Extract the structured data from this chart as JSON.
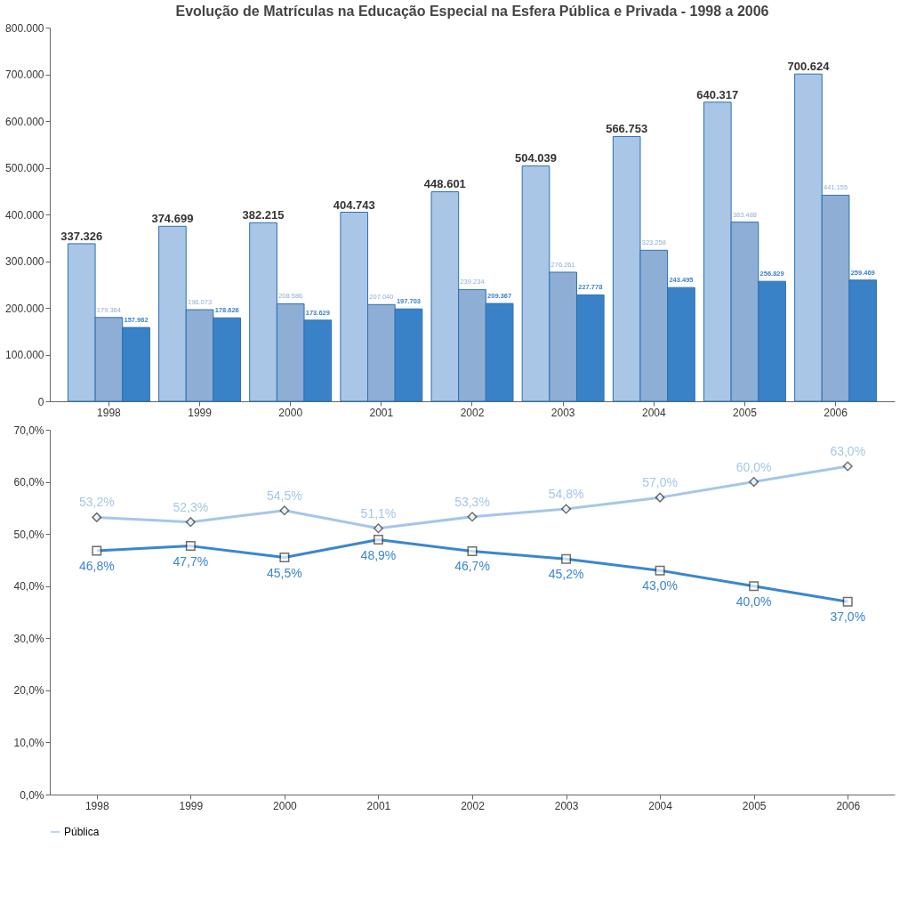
{
  "chart_data": [
    {
      "type": "bar",
      "title": "Evolução de Matrículas na Educação Especial na Esfera Pública e Privada - 1998 a 2006",
      "categories": [
        "1998",
        "1999",
        "2000",
        "2001",
        "2002",
        "2003",
        "2004",
        "2005",
        "2006"
      ],
      "series": [
        {
          "color": "#a9c6e6",
          "values": [
            337326,
            374699,
            382215,
            404743,
            448601,
            504039,
            566753,
            640317,
            700624
          ],
          "value_labels": [
            "337.326",
            "374.699",
            "382.215",
            "404.743",
            "448.601",
            "504.039",
            "566.753",
            "640.317",
            "700.624"
          ]
        },
        {
          "color": "#8eaed6",
          "values": [
            179364,
            196073,
            208586,
            207040,
            239234,
            276261,
            323258,
            383488,
            441155
          ],
          "value_labels": [
            "179.364",
            "196.073",
            "208.586",
            "207.040",
            "239.234",
            "276.261",
            "323.258",
            "383.488",
            "441.155"
          ]
        },
        {
          "color": "#3a82c8",
          "values": [
            157962,
            178626,
            173629,
            197703,
            209367,
            227778,
            243495,
            256829,
            259469
          ],
          "value_labels": [
            "157.962",
            "178.626",
            "173.629",
            "197.703",
            "209.367",
            "227.778",
            "243.495",
            "256.829",
            "259.469"
          ]
        }
      ],
      "ylim": [
        0,
        800000
      ],
      "yticks": [
        {
          "value": 0,
          "label": "0"
        },
        {
          "value": 100000,
          "label": "100.000"
        },
        {
          "value": 200000,
          "label": "200.000"
        },
        {
          "value": 300000,
          "label": "300.000"
        },
        {
          "value": 400000,
          "label": "400.000"
        },
        {
          "value": 500000,
          "label": "500.000"
        },
        {
          "value": 600000,
          "label": "600.000"
        },
        {
          "value": 700000,
          "label": "700.000"
        },
        {
          "value": 800000,
          "label": "800.000"
        }
      ],
      "grid": false
    },
    {
      "type": "line",
      "categories": [
        "1998",
        "1999",
        "2000",
        "2001",
        "2002",
        "2003",
        "2004",
        "2005",
        "2006"
      ],
      "series": [
        {
          "name": "Pública",
          "color": "#a6c6ea",
          "marker": "diamond",
          "values": [
            53.2,
            52.3,
            54.5,
            51.1,
            53.3,
            54.8,
            57.0,
            60.0,
            63.0
          ],
          "value_labels": [
            "53,2%",
            "52,3%",
            "54,5%",
            "51,1%",
            "53,3%",
            "54,8%",
            "57,0%",
            "60,0%",
            "63,0%"
          ]
        },
        {
          "color": "#3a86d0",
          "marker": "square",
          "values": [
            46.8,
            47.7,
            45.5,
            48.9,
            46.7,
            45.2,
            43.0,
            40.0,
            37.0
          ],
          "value_labels": [
            "46,8%",
            "47,7%",
            "45,5%",
            "48,9%",
            "46,7%",
            "45,2%",
            "43,0%",
            "40,0%",
            "37,0%"
          ]
        }
      ],
      "ylim": [
        0,
        70
      ],
      "yticks": [
        {
          "value": 0,
          "label": "0,0%"
        },
        {
          "value": 10,
          "label": "10,0%"
        },
        {
          "value": 20,
          "label": "20,0%"
        },
        {
          "value": 30,
          "label": "30,0%"
        },
        {
          "value": 40,
          "label": "40,0%"
        },
        {
          "value": 50,
          "label": "50,0%"
        },
        {
          "value": 60,
          "label": "60,0%"
        },
        {
          "value": 70,
          "label": "70,0%"
        }
      ],
      "grid": false,
      "legend": "bottom left",
      "line_style": "solid"
    }
  ]
}
